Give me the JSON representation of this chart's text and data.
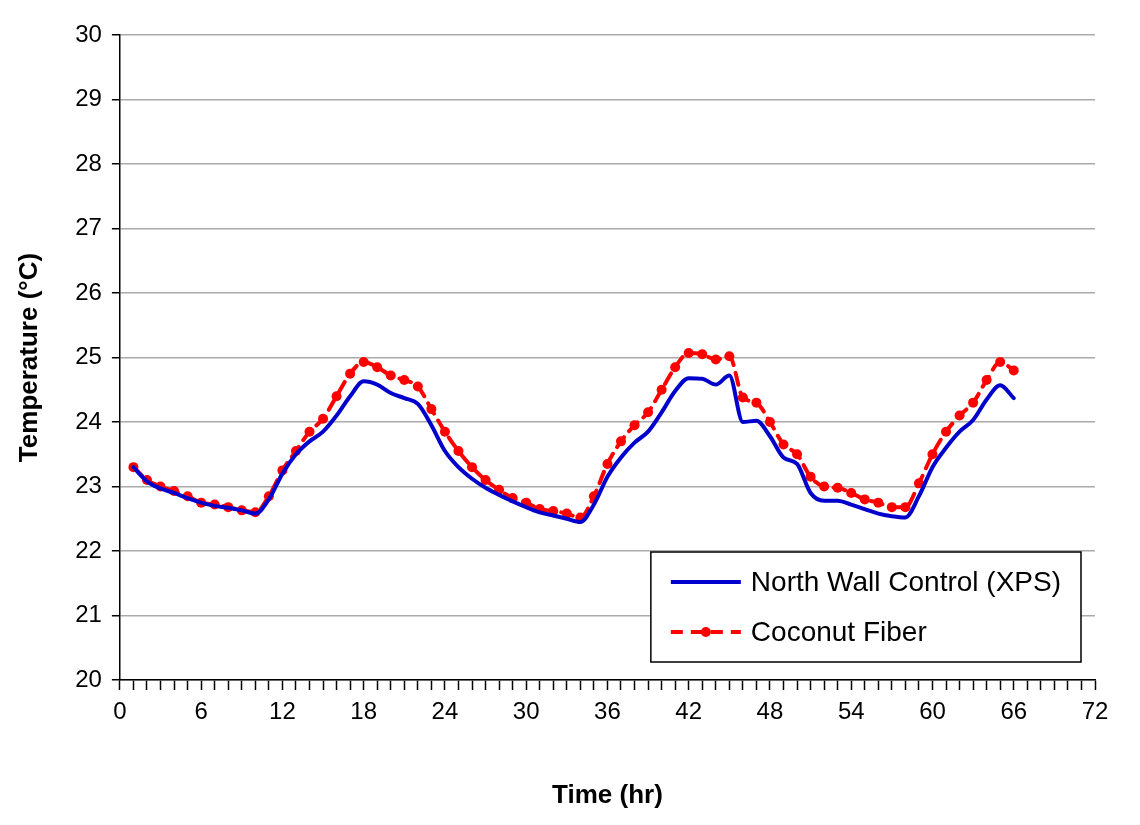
{
  "chart_data": {
    "type": "line",
    "xlabel": "Time (hr)",
    "ylabel": "Temperature (°C)",
    "x": [
      1,
      2,
      3,
      4,
      5,
      6,
      7,
      8,
      9,
      10,
      11,
      12,
      13,
      14,
      15,
      16,
      17,
      18,
      19,
      20,
      21,
      22,
      23,
      24,
      25,
      26,
      27,
      28,
      29,
      30,
      31,
      32,
      33,
      34,
      35,
      36,
      37,
      38,
      39,
      40,
      41,
      42,
      43,
      44,
      45,
      46,
      47,
      48,
      49,
      50,
      51,
      52,
      53,
      54,
      55,
      56,
      57,
      58,
      59,
      60,
      61,
      62,
      63,
      64,
      65,
      66
    ],
    "series": [
      {
        "name": "North Wall Control (XPS)",
        "color": "#0000cc",
        "marker": "none",
        "line_style": "solid",
        "values": [
          23.3,
          23.08,
          22.97,
          22.9,
          22.82,
          22.75,
          22.7,
          22.67,
          22.63,
          22.58,
          22.8,
          23.2,
          23.5,
          23.7,
          23.85,
          24.1,
          24.4,
          24.63,
          24.58,
          24.45,
          24.37,
          24.28,
          23.95,
          23.55,
          23.3,
          23.12,
          22.98,
          22.87,
          22.77,
          22.68,
          22.6,
          22.55,
          22.5,
          22.45,
          22.72,
          23.15,
          23.45,
          23.68,
          23.85,
          24.15,
          24.48,
          24.68,
          24.67,
          24.58,
          24.72,
          24.0,
          24.02,
          23.78,
          23.45,
          23.35,
          22.9,
          22.78,
          22.78,
          22.72,
          22.65,
          22.58,
          22.54,
          22.52,
          22.85,
          23.3,
          23.6,
          23.85,
          24.03,
          24.35,
          24.57,
          24.37
        ]
      },
      {
        "name": "Coconut Fiber",
        "color": "#ff0000",
        "marker": "circle",
        "line_style": "dashed",
        "values": [
          23.3,
          23.1,
          23.0,
          22.93,
          22.85,
          22.75,
          22.72,
          22.68,
          22.63,
          22.6,
          22.85,
          23.25,
          23.55,
          23.85,
          24.05,
          24.4,
          24.75,
          24.93,
          24.85,
          24.72,
          24.65,
          24.55,
          24.2,
          23.85,
          23.55,
          23.3,
          23.1,
          22.95,
          22.82,
          22.75,
          22.65,
          22.62,
          22.58,
          22.52,
          22.85,
          23.35,
          23.7,
          23.95,
          24.15,
          24.5,
          24.85,
          25.07,
          25.05,
          24.97,
          25.02,
          24.38,
          24.3,
          24.0,
          23.65,
          23.5,
          23.15,
          23.0,
          22.98,
          22.9,
          22.8,
          22.75,
          22.68,
          22.68,
          23.05,
          23.5,
          23.85,
          24.1,
          24.3,
          24.65,
          24.93,
          24.8
        ]
      }
    ],
    "xlim": [
      0,
      72
    ],
    "xticks": [
      0,
      {
        "value": 1,
        "label": null
      },
      {
        "value": 2,
        "label": null
      },
      {
        "value": 3,
        "label": null
      },
      {
        "value": 4,
        "label": null
      },
      {
        "value": 5,
        "label": null
      },
      6,
      {
        "value": 7,
        "label": null
      },
      {
        "value": 8,
        "label": null
      },
      {
        "value": 9,
        "label": null
      },
      {
        "value": 10,
        "label": null
      },
      {
        "value": 11,
        "label": null
      },
      12,
      {
        "value": 13,
        "label": null
      },
      {
        "value": 14,
        "label": null
      },
      {
        "value": 15,
        "label": null
      },
      {
        "value": 16,
        "label": null
      },
      {
        "value": 17,
        "label": null
      },
      18,
      {
        "value": 19,
        "label": null
      },
      {
        "value": 20,
        "label": null
      },
      {
        "value": 21,
        "label": null
      },
      {
        "value": 22,
        "label": null
      },
      {
        "value": 23,
        "label": null
      },
      24,
      {
        "value": 25,
        "label": null
      },
      {
        "value": 26,
        "label": null
      },
      {
        "value": 27,
        "label": null
      },
      {
        "value": 28,
        "label": null
      },
      {
        "value": 29,
        "label": null
      },
      30,
      {
        "value": 31,
        "label": null
      },
      {
        "value": 32,
        "label": null
      },
      {
        "value": 33,
        "label": null
      },
      {
        "value": 34,
        "label": null
      },
      {
        "value": 35,
        "label": null
      },
      36,
      {
        "value": 37,
        "label": null
      },
      {
        "value": 38,
        "label": null
      },
      {
        "value": 39,
        "label": null
      },
      {
        "value": 40,
        "label": null
      },
      {
        "value": 41,
        "label": null
      },
      42,
      {
        "value": 43,
        "label": null
      },
      {
        "value": 44,
        "label": null
      },
      {
        "value": 45,
        "label": null
      },
      {
        "value": 46,
        "label": null
      },
      {
        "value": 47,
        "label": null
      },
      48,
      {
        "value": 49,
        "label": null
      },
      {
        "value": 50,
        "label": null
      },
      {
        "value": 51,
        "label": null
      },
      {
        "value": 52,
        "label": null
      },
      {
        "value": 53,
        "label": null
      },
      54,
      {
        "value": 55,
        "label": null
      },
      {
        "value": 56,
        "label": null
      },
      {
        "value": 57,
        "label": null
      },
      {
        "value": 58,
        "label": null
      },
      {
        "value": 59,
        "label": null
      },
      60,
      {
        "value": 61,
        "label": null
      },
      {
        "value": 62,
        "label": null
      },
      {
        "value": 63,
        "label": null
      },
      {
        "value": 64,
        "label": null
      },
      {
        "value": 65,
        "label": null
      },
      66,
      {
        "value": 67,
        "label": null
      },
      {
        "value": 68,
        "label": null
      },
      {
        "value": 69,
        "label": null
      },
      {
        "value": 70,
        "label": null
      },
      {
        "value": 71,
        "label": null
      },
      72
    ],
    "ylim": [
      20,
      30
    ],
    "yticks": [
      20,
      21,
      22,
      23,
      24,
      25,
      26,
      27,
      28,
      29,
      30
    ],
    "grid": "y",
    "legend": "bottom right"
  }
}
